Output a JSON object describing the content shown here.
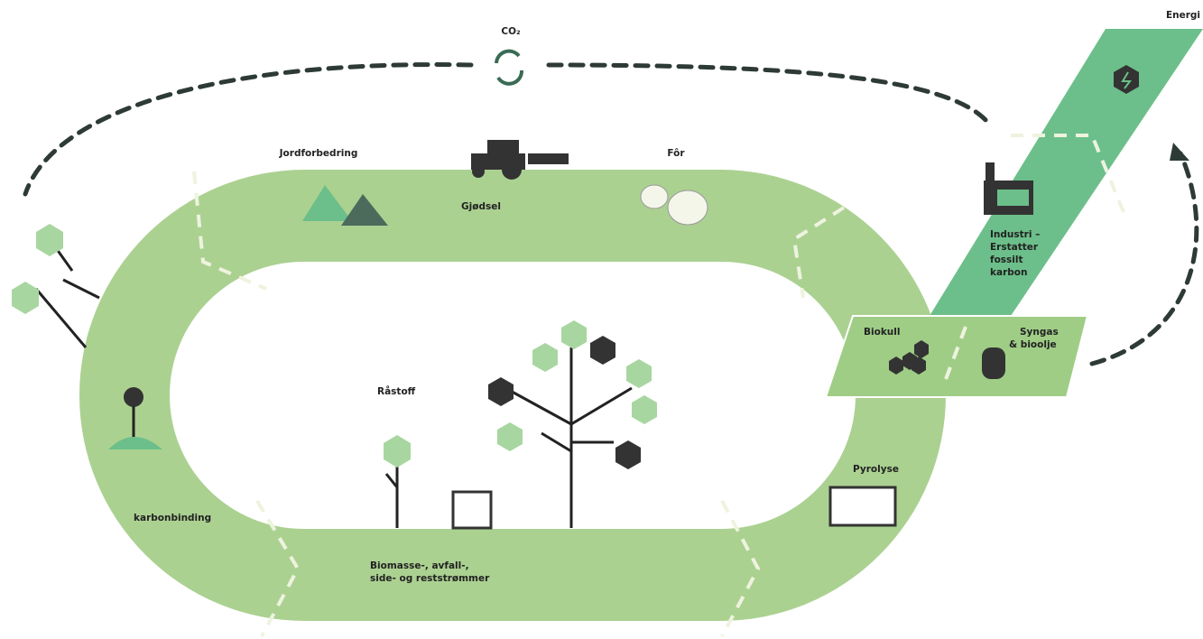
{
  "labels": {
    "co2": "CO₂",
    "energi": "Energi",
    "jordforbedring": "Jordforbedring",
    "gjodsel": "Gjødsel",
    "for": "Fôr",
    "industri": [
      "Industri –",
      "Erstatter",
      "fossilt",
      "karbon"
    ],
    "biokull": "Biokull",
    "syngas": [
      "Syngas",
      "& bioolje"
    ],
    "pyrolyse": "Pyrolyse",
    "rastoff": "Råstoff",
    "biomasse": [
      "Biomasse-, avfall-,",
      "side- og reststrømmer"
    ],
    "karbonbinding": "karbonbinding"
  }
}
